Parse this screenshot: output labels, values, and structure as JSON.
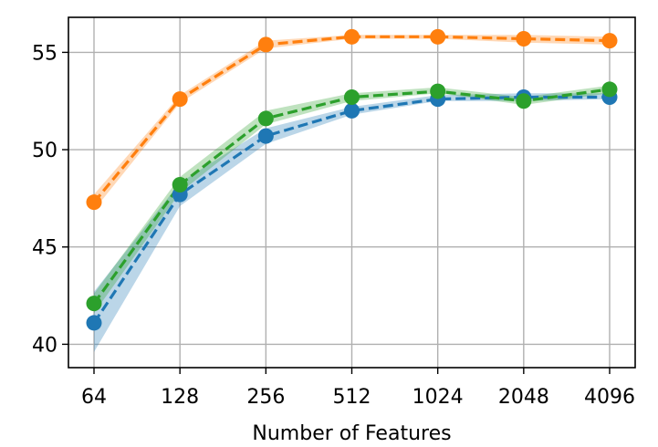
{
  "chart_data": {
    "type": "line",
    "title": "",
    "xlabel": "Number of Features",
    "ylabel": "",
    "categories": [
      "64",
      "128",
      "256",
      "512",
      "1024",
      "2048",
      "4096"
    ],
    "yticks": [
      40,
      45,
      50,
      55
    ],
    "ylim": [
      38.8,
      56.8
    ],
    "grid": true,
    "legend": "none",
    "series": [
      {
        "color": "#1f77b4",
        "line_style": "dashed",
        "marker": "circle",
        "values": [
          41.1,
          47.7,
          50.7,
          52.0,
          52.6,
          52.7,
          52.7
        ],
        "band_lower": [
          39.6,
          47.1,
          50.3,
          51.8,
          52.5,
          52.5,
          52.6
        ],
        "band_upper": [
          42.7,
          48.3,
          51.1,
          52.2,
          52.8,
          52.9,
          52.9
        ]
      },
      {
        "color": "#ff7f0e",
        "line_style": "dashed",
        "marker": "circle",
        "values": [
          47.3,
          52.6,
          55.4,
          55.8,
          55.8,
          55.7,
          55.6
        ],
        "band_lower": [
          46.9,
          52.4,
          55.2,
          55.7,
          55.7,
          55.5,
          55.4
        ],
        "band_upper": [
          47.7,
          52.8,
          55.6,
          55.9,
          55.9,
          55.9,
          55.8
        ]
      },
      {
        "color": "#2ca02c",
        "line_style": "dashed",
        "marker": "circle",
        "values": [
          42.1,
          48.2,
          51.6,
          52.7,
          53.0,
          52.5,
          53.1
        ],
        "band_lower": [
          41.6,
          47.8,
          51.3,
          52.5,
          52.9,
          52.3,
          52.9
        ],
        "band_upper": [
          42.6,
          48.6,
          52.0,
          52.9,
          53.2,
          52.7,
          53.3
        ]
      }
    ]
  }
}
